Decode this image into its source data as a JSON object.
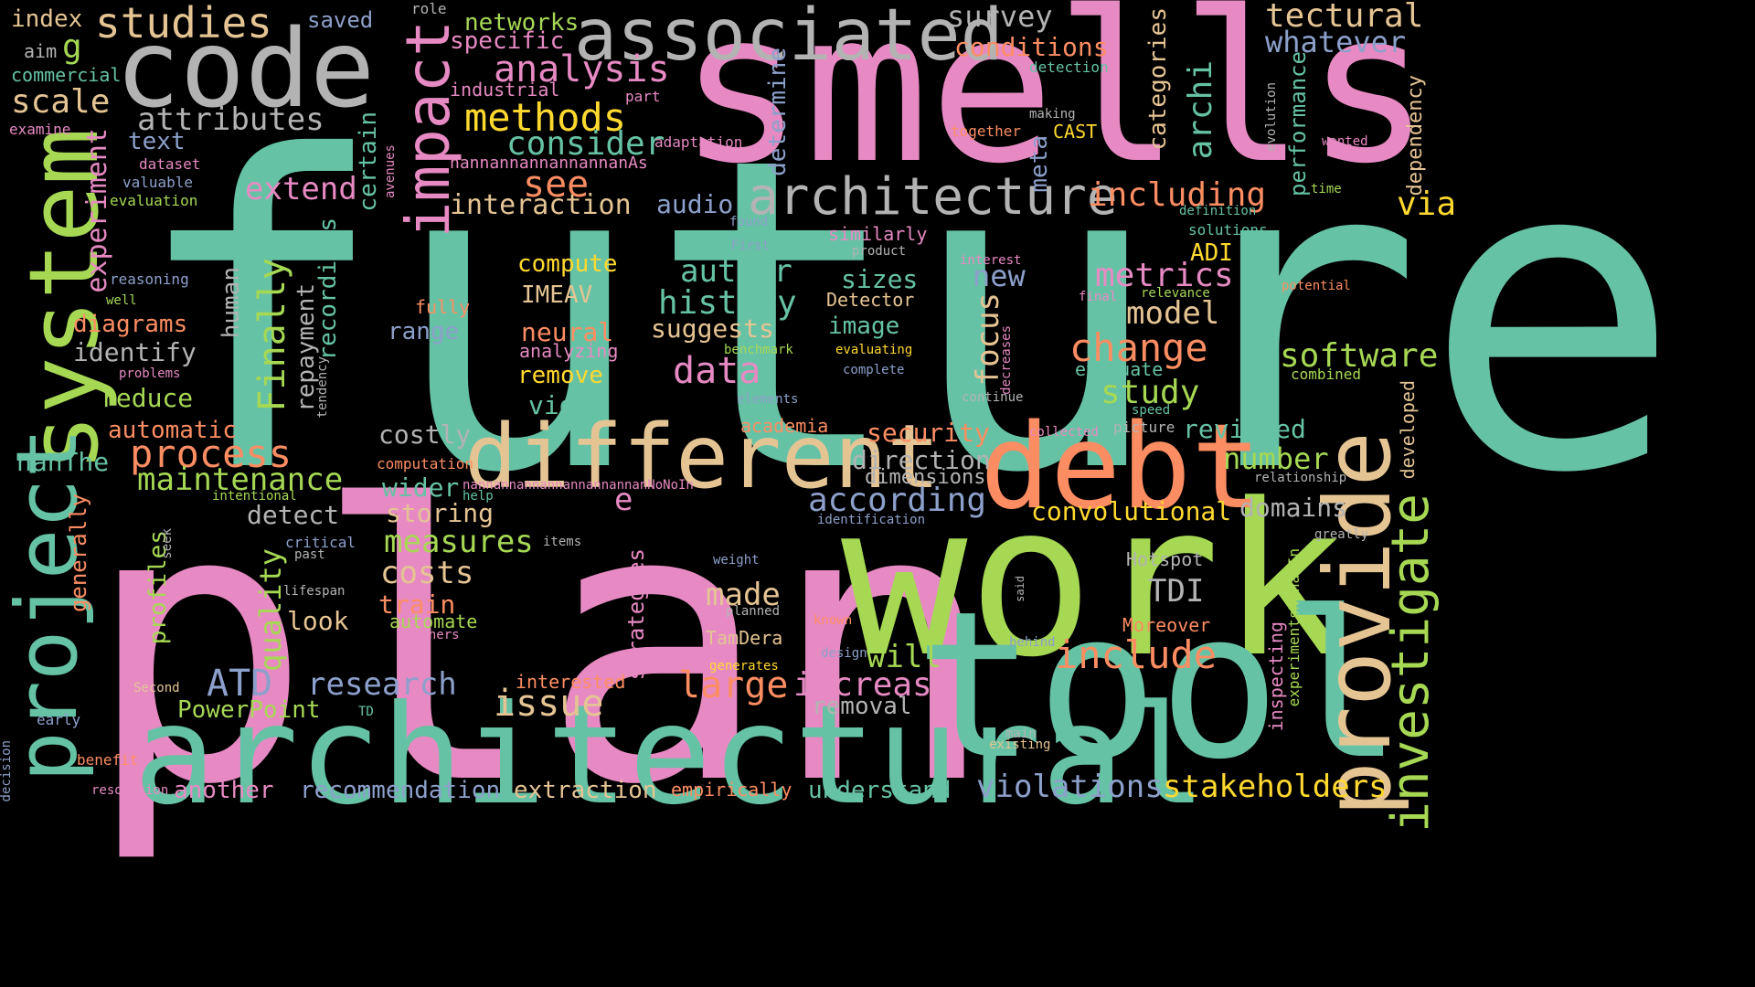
{
  "words": [
    {
      "id": "future",
      "text": "future",
      "color": "green"
    },
    {
      "id": "plan",
      "text": "plan",
      "color": "pink"
    },
    {
      "id": "smells",
      "text": "smells",
      "color": "pink"
    },
    {
      "id": "work",
      "text": "work",
      "color": "lime"
    },
    {
      "id": "architectural",
      "text": "architectural",
      "color": "green"
    },
    {
      "id": "tool",
      "text": "tool",
      "color": "green"
    },
    {
      "id": "code",
      "text": "code",
      "color": "gray"
    },
    {
      "id": "system",
      "text": "system",
      "color": "lime"
    },
    {
      "id": "project",
      "text": "project",
      "color": "green"
    },
    {
      "id": "different",
      "text": "different",
      "color": "tan"
    },
    {
      "id": "debt",
      "text": "debt",
      "color": "orange"
    },
    {
      "id": "provide",
      "text": "provide",
      "color": "tan"
    },
    {
      "id": "associated",
      "text": "associated",
      "color": "gray"
    },
    {
      "id": "architecture",
      "text": "architecture",
      "color": "gray"
    },
    {
      "id": "impact",
      "text": "impact",
      "color": "pink"
    },
    {
      "id": "investigate",
      "text": "investigate",
      "color": "lime"
    },
    {
      "id": "studies",
      "text": "studies",
      "color": "tan"
    },
    {
      "id": "index",
      "text": "index",
      "color": "tan"
    },
    {
      "id": "g",
      "text": "g",
      "color": "lime"
    },
    {
      "id": "saved",
      "text": "saved",
      "color": "blue"
    },
    {
      "id": "role",
      "text": "role",
      "color": "gray"
    },
    {
      "id": "networks",
      "text": "networks",
      "color": "lime"
    },
    {
      "id": "specific",
      "text": "specific",
      "color": "pink"
    },
    {
      "id": "survey",
      "text": "survey",
      "color": "gray"
    },
    {
      "id": "tectural",
      "text": "tectural",
      "color": "tan"
    },
    {
      "id": "whatever",
      "text": "whatever",
      "color": "blue"
    },
    {
      "id": "conditions",
      "text": "conditions",
      "color": "orange"
    },
    {
      "id": "aim",
      "text": "aim",
      "color": "gray"
    },
    {
      "id": "commercial",
      "text": "commercial",
      "color": "green"
    },
    {
      "id": "scale",
      "text": "scale",
      "color": "tan"
    },
    {
      "id": "analysis",
      "text": "analysis",
      "color": "pink"
    },
    {
      "id": "industrial",
      "text": "industrial",
      "color": "pink"
    },
    {
      "id": "part",
      "text": "part",
      "color": "pink"
    },
    {
      "id": "detection",
      "text": "detection",
      "color": "green"
    },
    {
      "id": "methods",
      "text": "methods",
      "color": "yellow"
    },
    {
      "id": "attributes",
      "text": "attributes",
      "color": "gray"
    },
    {
      "id": "examine",
      "text": "examine",
      "color": "pink"
    },
    {
      "id": "text",
      "text": "text",
      "color": "blue"
    },
    {
      "id": "consider",
      "text": "consider",
      "color": "green"
    },
    {
      "id": "adaptation",
      "text": "adaptation",
      "color": "pink"
    },
    {
      "id": "together",
      "text": "together",
      "color": "orange"
    },
    {
      "id": "CAST",
      "text": "CAST",
      "color": "yellow"
    },
    {
      "id": "making",
      "text": "making",
      "color": "gray"
    },
    {
      "id": "wanted",
      "text": "wanted",
      "color": "pink"
    },
    {
      "id": "dataset",
      "text": "dataset",
      "color": "pink"
    },
    {
      "id": "valuable",
      "text": "valuable",
      "color": "blue"
    },
    {
      "id": "evaluation",
      "text": "evaluation",
      "color": "lime"
    },
    {
      "id": "avenues",
      "text": "avenues",
      "color": "pink"
    },
    {
      "id": "nannannannannannanAs",
      "text": "nannannannannannanAs",
      "color": "pink"
    },
    {
      "id": "see",
      "text": "see",
      "color": "orange"
    },
    {
      "id": "extend",
      "text": "extend",
      "color": "pink"
    },
    {
      "id": "experiment",
      "text": "experiment",
      "color": "pink"
    },
    {
      "id": "audio",
      "text": "audio",
      "color": "blue"
    },
    {
      "id": "interaction",
      "text": "interaction",
      "color": "tan"
    },
    {
      "id": "including",
      "text": "including",
      "color": "orange"
    },
    {
      "id": "time",
      "text": "time",
      "color": "lime"
    },
    {
      "id": "via",
      "text": "via",
      "color": "yellow"
    },
    {
      "id": "definition",
      "text": "definition",
      "color": "green"
    },
    {
      "id": "found",
      "text": "found",
      "color": "blue"
    },
    {
      "id": "solutions",
      "text": "solutions",
      "color": "green"
    },
    {
      "id": "reasoning",
      "text": "reasoning",
      "color": "blue"
    },
    {
      "id": "well",
      "text": "well",
      "color": "lime"
    },
    {
      "id": "compute",
      "text": "compute",
      "color": "yellow"
    },
    {
      "id": "similarly",
      "text": "similarly",
      "color": "pink"
    },
    {
      "id": "First",
      "text": "First",
      "color": "blue"
    },
    {
      "id": "product",
      "text": "product",
      "color": "gray"
    },
    {
      "id": "interest",
      "text": "interest",
      "color": "pink"
    },
    {
      "id": "ADI",
      "text": "ADI",
      "color": "yellow"
    },
    {
      "id": "author",
      "text": "author",
      "color": "green"
    },
    {
      "id": "new",
      "text": "new",
      "color": "blue"
    },
    {
      "id": "metrics",
      "text": "metrics",
      "color": "pink"
    },
    {
      "id": "sizes",
      "text": "sizes",
      "color": "green"
    },
    {
      "id": "potential",
      "text": "potential",
      "color": "orange"
    },
    {
      "id": "IMEAV",
      "text": "IMEAV",
      "color": "tan"
    },
    {
      "id": "fully",
      "text": "fully",
      "color": "orange"
    },
    {
      "id": "history",
      "text": "history",
      "color": "green"
    },
    {
      "id": "Detector",
      "text": "Detector",
      "color": "tan"
    },
    {
      "id": "final",
      "text": "final",
      "color": "pink"
    },
    {
      "id": "relevance",
      "text": "relevance",
      "color": "lime"
    },
    {
      "id": "diagrams",
      "text": "diagrams",
      "color": "orange"
    },
    {
      "id": "neural",
      "text": "neural",
      "color": "orange"
    },
    {
      "id": "range",
      "text": "range",
      "color": "blue"
    },
    {
      "id": "suggests",
      "text": "suggests",
      "color": "tan"
    },
    {
      "id": "image",
      "text": "image",
      "color": "green"
    },
    {
      "id": "model",
      "text": "model",
      "color": "tan"
    },
    {
      "id": "identify",
      "text": "identify",
      "color": "gray"
    },
    {
      "id": "analyzing",
      "text": "analyzing",
      "color": "pink"
    },
    {
      "id": "benchmark",
      "text": "benchmark",
      "color": "lime"
    },
    {
      "id": "evaluating",
      "text": "evaluating",
      "color": "yellow"
    },
    {
      "id": "change",
      "text": "change",
      "color": "orange"
    },
    {
      "id": "software",
      "text": "software",
      "color": "lime"
    },
    {
      "id": "problems",
      "text": "problems",
      "color": "pink"
    },
    {
      "id": "data",
      "text": "data",
      "color": "pink"
    },
    {
      "id": "evaluate",
      "text": "evaluate",
      "color": "green"
    },
    {
      "id": "combined",
      "text": "combined",
      "color": "lime"
    },
    {
      "id": "remove",
      "text": "remove",
      "color": "yellow"
    },
    {
      "id": "complete",
      "text": "complete",
      "color": "blue"
    },
    {
      "id": "reduce",
      "text": "reduce",
      "color": "lime"
    },
    {
      "id": "elements",
      "text": "elements",
      "color": "blue"
    },
    {
      "id": "continue",
      "text": "continue",
      "color": "gray"
    },
    {
      "id": "study",
      "text": "study",
      "color": "lime"
    },
    {
      "id": "video",
      "text": "video",
      "color": "green"
    },
    {
      "id": "automatic",
      "text": "automatic",
      "color": "orange"
    },
    {
      "id": "academia",
      "text": "academia",
      "color": "orange"
    },
    {
      "id": "collected",
      "text": "collected",
      "color": "pink"
    },
    {
      "id": "speed",
      "text": "speed",
      "color": "green"
    },
    {
      "id": "picture",
      "text": "picture",
      "color": "gray"
    },
    {
      "id": "costly",
      "text": "costly",
      "color": "gray"
    },
    {
      "id": "security",
      "text": "security",
      "color": "orange"
    },
    {
      "id": "reviewed",
      "text": "reviewed",
      "color": "green"
    },
    {
      "id": "process",
      "text": "process",
      "color": "orange"
    },
    {
      "id": "nanThe",
      "text": "nanThe",
      "color": "green"
    },
    {
      "id": "direction",
      "text": "direction",
      "color": "gray"
    },
    {
      "id": "number",
      "text": "number",
      "color": "lime"
    },
    {
      "id": "maintenance",
      "text": "maintenance",
      "color": "lime"
    },
    {
      "id": "computation",
      "text": "computation",
      "color": "orange"
    },
    {
      "id": "dimensions",
      "text": "dimensions",
      "color": "gray"
    },
    {
      "id": "relationship",
      "text": "relationship",
      "color": "gray"
    },
    {
      "id": "intentional",
      "text": "intentional",
      "color": "lime"
    },
    {
      "id": "wider",
      "text": "wider",
      "color": "green"
    },
    {
      "id": "nannannannannannannannanNoNoIn",
      "text": "nannannannannannannannanNoNoIn",
      "color": "pink"
    },
    {
      "id": "help",
      "text": "help",
      "color": "green"
    },
    {
      "id": "according",
      "text": "according",
      "color": "blue"
    },
    {
      "id": "convolutional",
      "text": "convolutional",
      "color": "yellow"
    },
    {
      "id": "domains",
      "text": "domains",
      "color": "gray"
    },
    {
      "id": "detect",
      "text": "detect",
      "color": "gray"
    },
    {
      "id": "storing",
      "text": "storing",
      "color": "tan"
    },
    {
      "id": "identification",
      "text": "identification",
      "color": "blue"
    },
    {
      "id": "greatly",
      "text": "greatly",
      "color": "gray"
    },
    {
      "id": "measures",
      "text": "measures",
      "color": "lime"
    },
    {
      "id": "items",
      "text": "items",
      "color": "gray"
    },
    {
      "id": "critical",
      "text": "critical",
      "color": "blue"
    },
    {
      "id": "past",
      "text": "past",
      "color": "gray"
    },
    {
      "id": "weight",
      "text": "weight",
      "color": "blue"
    },
    {
      "id": "Hotspot",
      "text": "Hotspot",
      "color": "gray"
    },
    {
      "id": "costs",
      "text": "costs",
      "color": "tan"
    },
    {
      "id": "TDI",
      "text": "TDI",
      "color": "gray"
    },
    {
      "id": "made",
      "text": "made",
      "color": "tan"
    },
    {
      "id": "lifespan",
      "text": "lifespan",
      "color": "gray"
    },
    {
      "id": "said",
      "text": "said",
      "color": "gray"
    },
    {
      "id": "train",
      "text": "train",
      "color": "orange"
    },
    {
      "id": "planned",
      "text": "planned",
      "color": "gray"
    },
    {
      "id": "known",
      "text": "known",
      "color": "orange"
    },
    {
      "id": "Moreover",
      "text": "Moreover",
      "color": "orange"
    },
    {
      "id": "look",
      "text": "look",
      "color": "tan"
    },
    {
      "id": "automate",
      "text": "automate",
      "color": "lime"
    },
    {
      "id": "others",
      "text": "others",
      "color": "pink"
    },
    {
      "id": "TamDera",
      "text": "TamDera",
      "color": "tan"
    },
    {
      "id": "behind",
      "text": "behind",
      "color": "blue"
    },
    {
      "id": "include",
      "text": "include",
      "color": "orange"
    },
    {
      "id": "will",
      "text": "will",
      "color": "lime"
    },
    {
      "id": "design",
      "text": "design",
      "color": "blue"
    },
    {
      "id": "generates",
      "text": "generates",
      "color": "yellow"
    },
    {
      "id": "ATD",
      "text": "ATD",
      "color": "blue"
    },
    {
      "id": "research",
      "text": "research",
      "color": "blue"
    },
    {
      "id": "large",
      "text": "large",
      "color": "orange"
    },
    {
      "id": "increase",
      "text": "increase",
      "color": "pink"
    },
    {
      "id": "Second",
      "text": "Second",
      "color": "tan"
    },
    {
      "id": "interested",
      "text": "interested",
      "color": "orange"
    },
    {
      "id": "issue",
      "text": "issue",
      "color": "tan"
    },
    {
      "id": "PowerPoint",
      "text": "PowerPoint",
      "color": "lime"
    },
    {
      "id": "TD",
      "text": "TD",
      "color": "green"
    },
    {
      "id": "removal",
      "text": "removal",
      "color": "gray"
    },
    {
      "id": "early",
      "text": "early",
      "color": "blue"
    },
    {
      "id": "main",
      "text": "main",
      "color": "gray"
    },
    {
      "id": "existing",
      "text": "existing",
      "color": "tan"
    },
    {
      "id": "benefit",
      "text": "benefit",
      "color": "orange"
    },
    {
      "id": "resolution",
      "text": "resolution",
      "color": "pink"
    },
    {
      "id": "another",
      "text": "another",
      "color": "pink"
    },
    {
      "id": "recommendation",
      "text": "recommendation",
      "color": "blue"
    },
    {
      "id": "extraction",
      "text": "extraction",
      "color": "tan"
    },
    {
      "id": "empirically",
      "text": "empirically",
      "color": "orange"
    },
    {
      "id": "understand",
      "text": "understand",
      "color": "green"
    },
    {
      "id": "violations",
      "text": "violations",
      "color": "blue"
    },
    {
      "id": "stakeholders",
      "text": "stakeholders",
      "color": "yellow"
    },
    {
      "id": "categories",
      "text": "categories",
      "color": "tan"
    },
    {
      "id": "archi",
      "text": "archi",
      "color": "green"
    },
    {
      "id": "determine",
      "text": "determine",
      "color": "blue"
    },
    {
      "id": "meta",
      "text": "meta",
      "color": "blue"
    },
    {
      "id": "certain",
      "text": "certain",
      "color": "green"
    },
    {
      "id": "recordings",
      "text": "recordings",
      "color": "green"
    },
    {
      "id": "repayment",
      "text": "repayment",
      "color": "gray"
    },
    {
      "id": "human",
      "text": "human",
      "color": "gray"
    },
    {
      "id": "Finally",
      "text": "Finally",
      "color": "lime"
    },
    {
      "id": "tendency",
      "text": "tendency",
      "color": "gray"
    },
    {
      "id": "focus",
      "text": "focus",
      "color": "tan"
    },
    {
      "id": "performance",
      "text": "performance",
      "color": "green"
    },
    {
      "id": "evolution",
      "text": "evolution",
      "color": "gray"
    },
    {
      "id": "dependency",
      "text": "dependency",
      "color": "tan"
    },
    {
      "id": "developed",
      "text": "developed",
      "color": "tan"
    },
    {
      "id": "decreases",
      "text": "decreases",
      "color": "pink"
    },
    {
      "id": "generally",
      "text": "generally",
      "color": "orange"
    },
    {
      "id": "profiles",
      "text": "profiles",
      "color": "lime"
    },
    {
      "id": "seek",
      "text": "seek",
      "color": "gray"
    },
    {
      "id": "quality",
      "text": "quality",
      "color": "lime"
    },
    {
      "id": "e",
      "text": "e",
      "color": "pink"
    },
    {
      "id": "strategies",
      "text": "strategies",
      "color": "pink"
    },
    {
      "id": "inspecting",
      "text": "inspecting",
      "color": "pink"
    },
    {
      "id": "experimentsNonanIn",
      "text": "experimentsNonanIn",
      "color": "lime"
    },
    {
      "id": "decision",
      "text": "decision",
      "color": "blue"
    }
  ],
  "palette": {
    "green": "#66c2a5",
    "pink": "#e78ac3",
    "lime": "#a6d854",
    "orange": "#fc8d62",
    "blue": "#8da0cb",
    "yellow": "#ffd92f",
    "tan": "#e5c494",
    "gray": "#b3b3b3"
  }
}
